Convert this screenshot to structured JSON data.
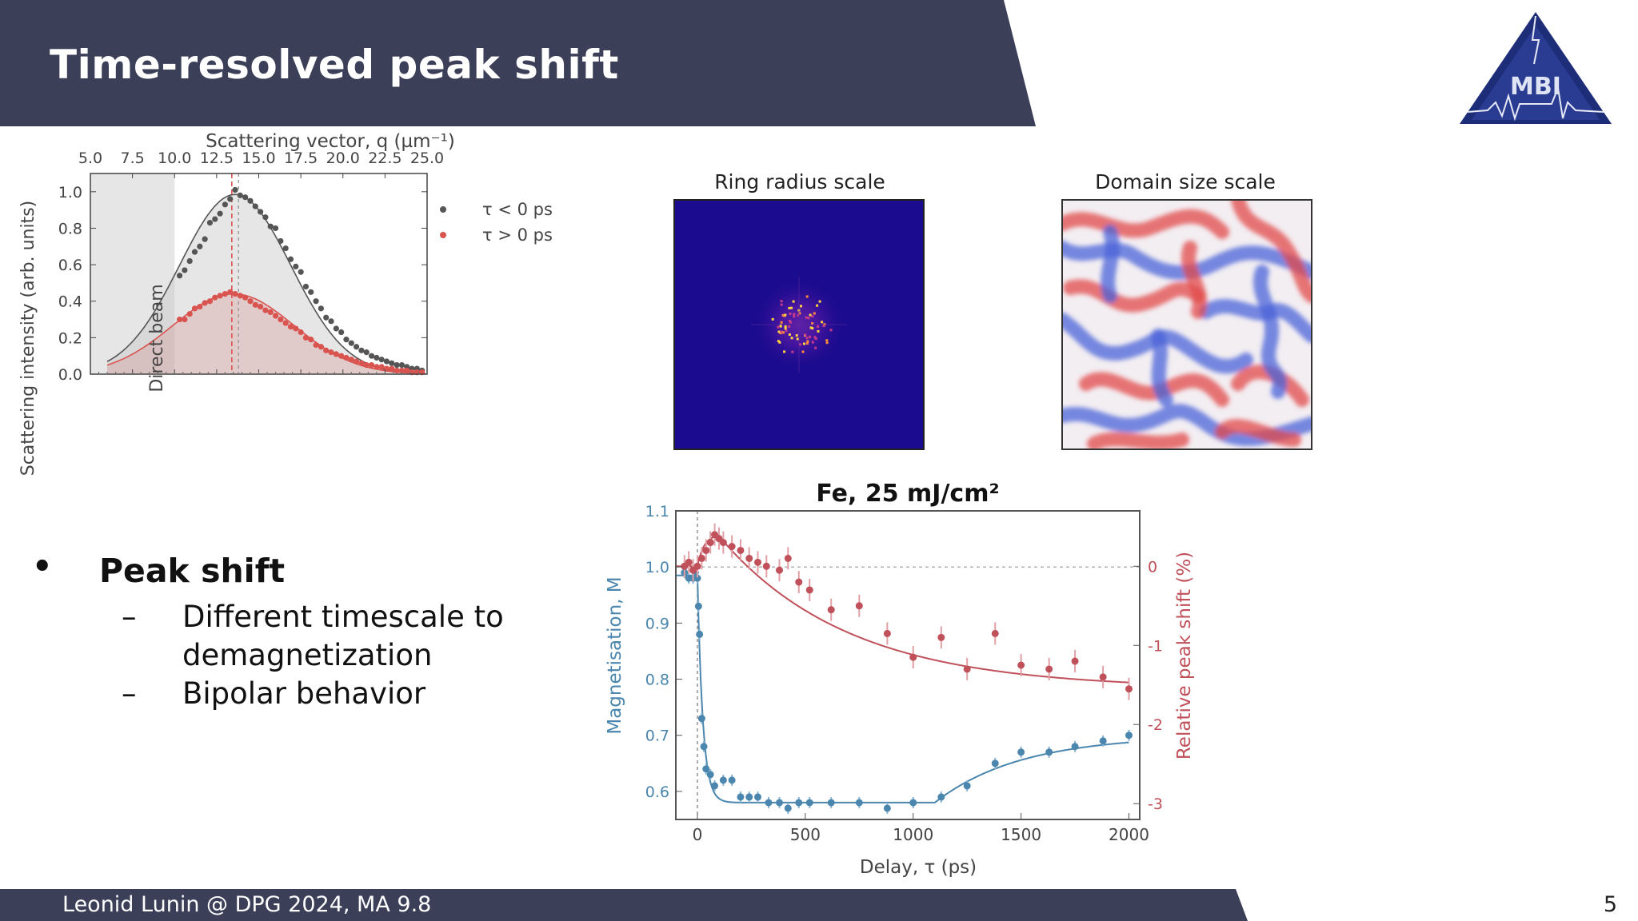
{
  "slide": {
    "title": "Time-resolved peak shift",
    "footer": "Leonid Lunin @ DPG 2024, MA 9.8",
    "page_number": "5",
    "logo_text": "MBI"
  },
  "colors": {
    "bar": "#3b3f58",
    "gray_series": "#555555",
    "red_series": "#d9534f",
    "blue_series": "#4a86ad",
    "red_right": "#c0505a"
  },
  "bullets": {
    "main": "Peak shift",
    "sub1_line1": "Different timescale to",
    "sub1_line2": "demagnetization",
    "sub2": "Bipolar behavior"
  },
  "images": {
    "ring_title": "Ring radius scale",
    "domain_title": "Domain size scale"
  },
  "chart_data": [
    {
      "type": "scatter",
      "title": "",
      "xlabel": "",
      "top_xlabel": "Scattering vector, q (µm⁻¹)",
      "ylabel": "Scattering intensity (arb. units)",
      "xlim": [
        5.0,
        25.0
      ],
      "ylim": [
        0.0,
        1.1
      ],
      "x_ticks": [
        "5.0",
        "7.5",
        "10.0",
        "12.5",
        "15.0",
        "17.5",
        "20.0",
        "22.5",
        "25.0"
      ],
      "y_ticks": [
        "0.0",
        "0.2",
        "0.4",
        "0.6",
        "0.8",
        "1.0"
      ],
      "annotation": "Direct beam",
      "shaded_xrange": [
        5.0,
        10.0
      ],
      "vlines": [
        13.4,
        13.8
      ],
      "legend_position": "top-right",
      "series": [
        {
          "name": "τ < 0 ps",
          "x": [
            10.3,
            10.6,
            10.9,
            11.2,
            11.5,
            11.8,
            12.1,
            12.4,
            12.7,
            13.0,
            13.3,
            13.6,
            13.9,
            14.2,
            14.5,
            14.8,
            15.1,
            15.4,
            15.7,
            16.0,
            16.3,
            16.6,
            16.9,
            17.2,
            17.5,
            17.8,
            18.1,
            18.4,
            18.7,
            19.0,
            19.3,
            19.6,
            19.9,
            20.2,
            20.5,
            20.8,
            21.1,
            21.4,
            21.7,
            22.0,
            22.3,
            22.6,
            22.9,
            23.2,
            23.5,
            23.8,
            24.1,
            24.4,
            24.7
          ],
          "y": [
            0.54,
            0.57,
            0.62,
            0.67,
            0.7,
            0.74,
            0.83,
            0.85,
            0.88,
            0.93,
            0.96,
            1.01,
            0.98,
            0.97,
            0.95,
            0.92,
            0.89,
            0.86,
            0.81,
            0.8,
            0.73,
            0.69,
            0.63,
            0.59,
            0.56,
            0.48,
            0.45,
            0.4,
            0.36,
            0.31,
            0.29,
            0.25,
            0.23,
            0.19,
            0.17,
            0.15,
            0.13,
            0.12,
            0.1,
            0.09,
            0.08,
            0.07,
            0.06,
            0.05,
            0.05,
            0.04,
            0.03,
            0.03,
            0.02
          ]
        },
        {
          "name": "τ > 0 ps",
          "x": [
            10.3,
            10.6,
            10.9,
            11.2,
            11.5,
            11.8,
            12.1,
            12.4,
            12.7,
            13.0,
            13.3,
            13.6,
            13.9,
            14.2,
            14.5,
            14.8,
            15.1,
            15.4,
            15.7,
            16.0,
            16.3,
            16.6,
            16.9,
            17.2,
            17.5,
            17.8,
            18.1,
            18.4,
            18.7,
            19.0,
            19.3,
            19.6,
            19.9,
            20.2,
            20.5,
            20.8,
            21.1,
            21.4,
            21.7,
            22.0,
            22.3,
            22.6,
            22.9,
            23.2,
            23.5,
            23.8,
            24.1,
            24.4,
            24.7
          ],
          "y": [
            0.3,
            0.3,
            0.33,
            0.36,
            0.37,
            0.39,
            0.4,
            0.42,
            0.43,
            0.44,
            0.45,
            0.44,
            0.43,
            0.42,
            0.4,
            0.38,
            0.37,
            0.35,
            0.34,
            0.32,
            0.3,
            0.28,
            0.26,
            0.25,
            0.23,
            0.2,
            0.19,
            0.16,
            0.15,
            0.13,
            0.12,
            0.11,
            0.1,
            0.09,
            0.08,
            0.07,
            0.06,
            0.05,
            0.05,
            0.04,
            0.04,
            0.03,
            0.03,
            0.02,
            0.02,
            0.02,
            0.01,
            0.01,
            0.01
          ]
        }
      ]
    },
    {
      "type": "scatter",
      "title": "Fe, 25 mJ/cm²",
      "xlabel": "Delay, τ (ps)",
      "ylabel": "Magnetisation, M",
      "ylabel_right": "Relative peak shift (%)",
      "xlim": [
        -100,
        2050
      ],
      "ylim": [
        0.55,
        1.1
      ],
      "ylim_right": [
        -3.2,
        0.7
      ],
      "x_ticks": [
        "0",
        "500",
        "1000",
        "1500",
        "2000"
      ],
      "y_ticks": [
        "0.6",
        "0.7",
        "0.8",
        "0.9",
        "1.0",
        "1.1"
      ],
      "y_ticks_right": [
        "-3",
        "-2",
        "-1",
        "0"
      ],
      "grid": false,
      "series": [
        {
          "name": "",
          "x": [
            -60,
            -40,
            -20,
            -10,
            0,
            5,
            10,
            20,
            30,
            40,
            60,
            80,
            120,
            160,
            200,
            240,
            280,
            330,
            380,
            420,
            470,
            520,
            620,
            750,
            880,
            1000,
            1130,
            1250,
            1380,
            1500,
            1630,
            1750,
            1880,
            2000
          ],
          "y": [
            0.99,
            0.98,
            0.98,
            0.99,
            0.98,
            0.93,
            0.88,
            0.73,
            0.68,
            0.64,
            0.63,
            0.61,
            0.62,
            0.62,
            0.59,
            0.59,
            0.59,
            0.58,
            0.58,
            0.57,
            0.58,
            0.58,
            0.58,
            0.58,
            0.57,
            0.58,
            0.59,
            0.61,
            0.65,
            0.67,
            0.67,
            0.68,
            0.69,
            0.7
          ]
        },
        {
          "name": "",
          "x": [
            -60,
            -40,
            -20,
            0,
            20,
            40,
            60,
            80,
            100,
            120,
            160,
            200,
            240,
            280,
            320,
            380,
            420,
            470,
            520,
            620,
            750,
            880,
            1000,
            1130,
            1250,
            1380,
            1500,
            1630,
            1750,
            1880,
            2000
          ],
          "y": [
            0.0,
            0.05,
            -0.05,
            0.0,
            0.1,
            0.2,
            0.3,
            0.4,
            0.35,
            0.3,
            0.25,
            0.2,
            0.1,
            0.05,
            0.0,
            -0.05,
            0.1,
            -0.2,
            -0.3,
            -0.55,
            -0.5,
            -0.85,
            -1.15,
            -0.9,
            -1.3,
            -0.85,
            -1.25,
            -1.3,
            -1.2,
            -1.4,
            -1.55
          ]
        }
      ]
    }
  ]
}
